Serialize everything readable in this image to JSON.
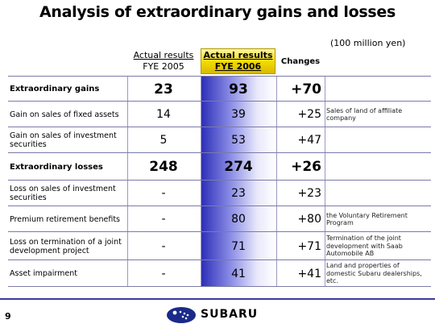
{
  "title": "Analysis of extraordinary gains and losses",
  "unit": "(100 million yen)",
  "headers": {
    "fye2005_l1": "Actual results",
    "fye2005_l2": "FYE 2005",
    "fye2006_l1": "Actual results",
    "fye2006_l2": "FYE 2006",
    "changes": "Changes"
  },
  "rows": [
    {
      "label": "Extraordinary gains",
      "fye2005": "23",
      "fye2006": "93",
      "change": "+70",
      "note": ""
    },
    {
      "label": "Gain on sales of fixed assets",
      "fye2005": "14",
      "fye2006": "39",
      "change": "+25",
      "note": "Sales of land of affiliate company"
    },
    {
      "label": "Gain on sales of investment securities",
      "fye2005": "5",
      "fye2006": "53",
      "change": "+47",
      "note": ""
    },
    {
      "label": "Extraordinary losses",
      "fye2005": "248",
      "fye2006": "274",
      "change": "+26",
      "note": ""
    },
    {
      "label": "Loss on sales of investment securities",
      "fye2005": "-",
      "fye2006": "23",
      "change": "+23",
      "note": ""
    },
    {
      "label": "Premium retirement benefits",
      "fye2005": "-",
      "fye2006": "80",
      "change": "+80",
      "note": "the Voluntary Retirement Program"
    },
    {
      "label": "Loss on termination of a joint development project",
      "fye2005": "-",
      "fye2006": "71",
      "change": "+71",
      "note": "Termination of the joint development with Saab Automobile AB"
    },
    {
      "label": "Asset impairment",
      "fye2005": "-",
      "fye2006": "41",
      "change": "+41",
      "note": "Land and properties of domestic Subaru dealerships, etc."
    }
  ],
  "footer": {
    "page_number": "9",
    "brand": "SUBARU"
  },
  "colors": {
    "title_text": "#000000",
    "header_highlight": "#f2d900",
    "column_gradient": "#2d2fb8",
    "rule": "#3a3aa0"
  }
}
